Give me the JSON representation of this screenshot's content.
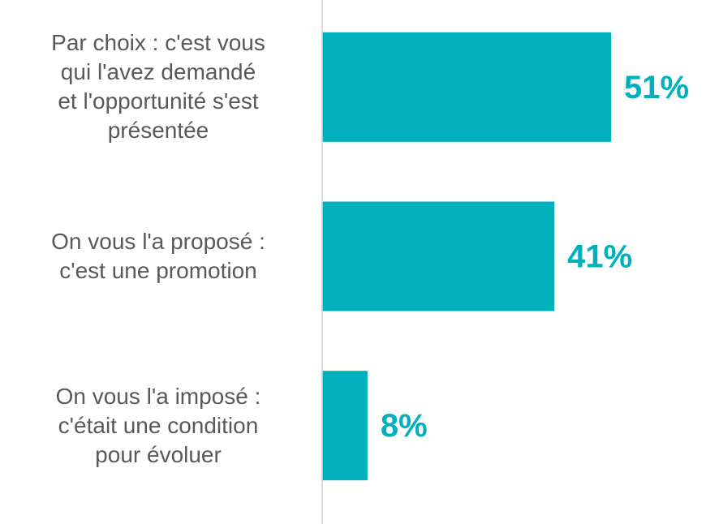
{
  "chart_data": {
    "type": "bar",
    "orientation": "horizontal",
    "categories": [
      "Par choix : c'est vous\nqui l'avez demandé\net l'opportunité s'est\nprésentée",
      "On vous l'a proposé :\nc'est une promotion",
      "On vous l'a imposé :\nc'était une condition\npour évoluer"
    ],
    "values": [
      51,
      41,
      8
    ],
    "value_labels": [
      "51%",
      "41%",
      "8%"
    ],
    "color": "#00b0bc",
    "xlim": [
      0,
      60
    ]
  }
}
